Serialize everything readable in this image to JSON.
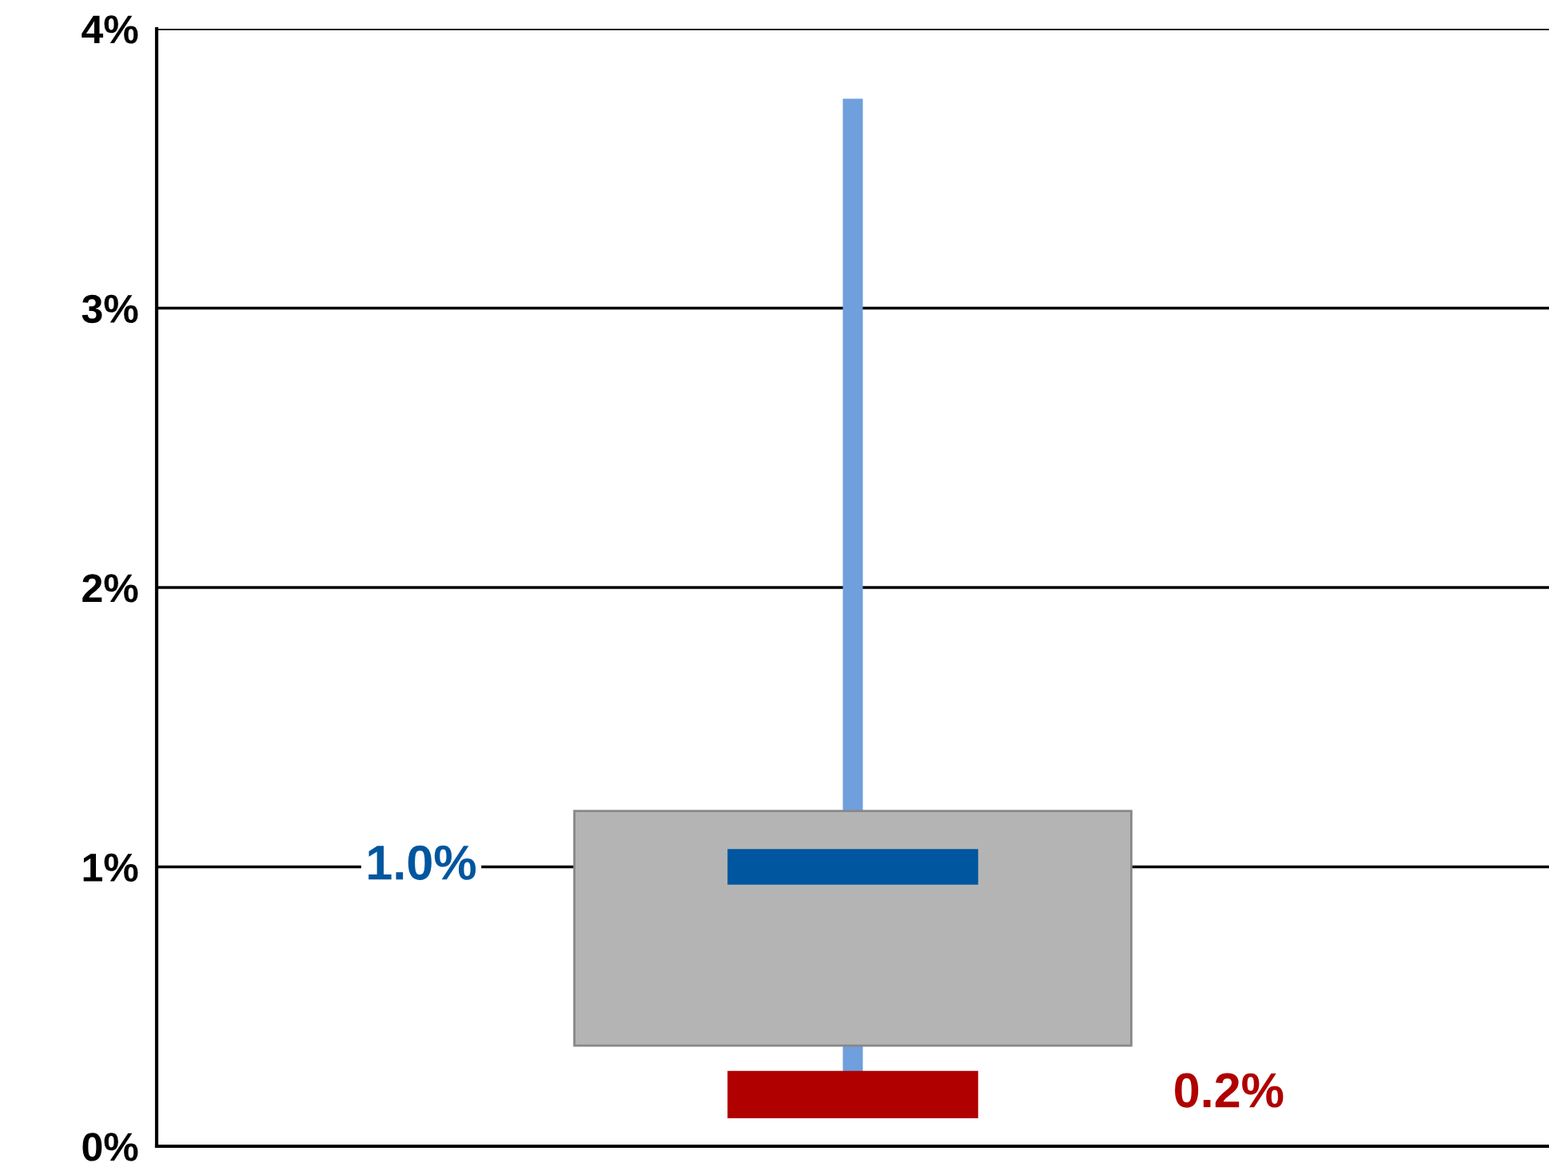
{
  "chart_data": {
    "type": "box",
    "categories": [
      null
    ],
    "ylim": [
      0,
      4
    ],
    "yticks": [
      {
        "value": 0,
        "label": "0%"
      },
      {
        "value": 1,
        "label": "1%"
      },
      {
        "value": 2,
        "label": "2%"
      },
      {
        "value": 3,
        "label": "3%"
      },
      {
        "value": 4,
        "label": "4%"
      }
    ],
    "grid": "y",
    "legend": false,
    "tick_labels": "y",
    "series": [
      {
        "color": "#b4b4b4",
        "boxes": [
          {
            "low": 0.25,
            "q1": 0.36,
            "median": 1.0,
            "q3": 1.2,
            "high": 3.75
          }
        ]
      },
      {
        "type": "bar",
        "color": "#b00000",
        "values": [
          0.17
        ],
        "base": [
          0.1
        ]
      }
    ],
    "annotations": [
      "1.0%",
      "0.2%"
    ]
  }
}
